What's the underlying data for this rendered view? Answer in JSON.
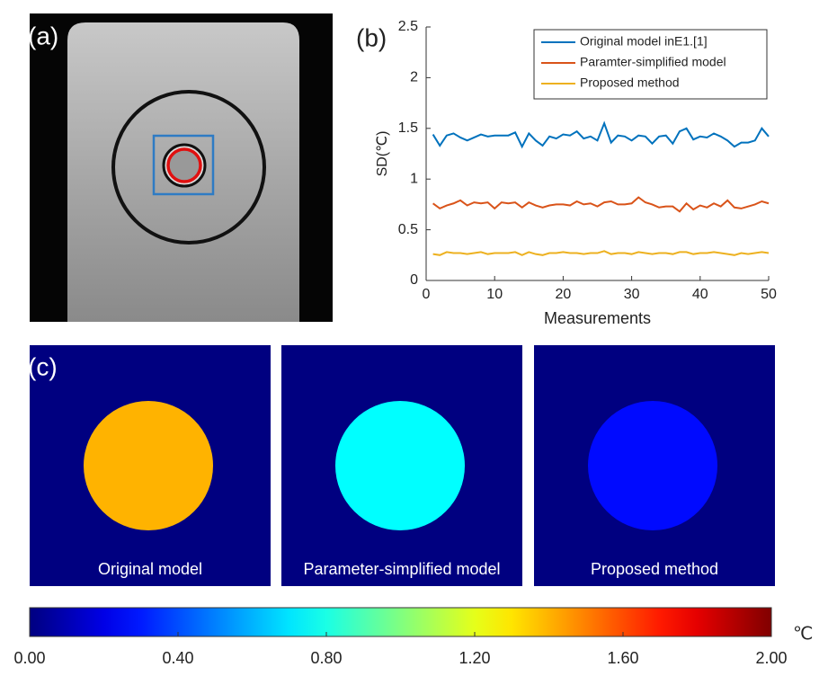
{
  "panel_labels": [
    "(a)",
    "(b)",
    "(c)"
  ],
  "chart_data": [
    {
      "type": "line",
      "xlabel": "Measurements",
      "ylabel": "SD(℃)",
      "x": [
        1,
        2,
        3,
        4,
        5,
        6,
        7,
        8,
        9,
        10,
        11,
        12,
        13,
        14,
        15,
        16,
        17,
        18,
        19,
        20,
        21,
        22,
        23,
        24,
        25,
        26,
        27,
        28,
        29,
        30,
        31,
        32,
        33,
        34,
        35,
        36,
        37,
        38,
        39,
        40,
        41,
        42,
        43,
        44,
        45,
        46,
        47,
        48,
        49,
        50
      ],
      "series": [
        {
          "name": "Original model inE1.[1]",
          "color": "#0072bd",
          "values": [
            1.44,
            1.33,
            1.43,
            1.45,
            1.41,
            1.38,
            1.41,
            1.44,
            1.42,
            1.43,
            1.43,
            1.43,
            1.46,
            1.32,
            1.45,
            1.38,
            1.33,
            1.42,
            1.4,
            1.44,
            1.43,
            1.47,
            1.4,
            1.42,
            1.38,
            1.55,
            1.36,
            1.43,
            1.42,
            1.38,
            1.43,
            1.42,
            1.35,
            1.42,
            1.43,
            1.35,
            1.47,
            1.5,
            1.39,
            1.42,
            1.41,
            1.45,
            1.42,
            1.38,
            1.32,
            1.36,
            1.36,
            1.38,
            1.5,
            1.42
          ]
        },
        {
          "name": "Paramter-simplified model",
          "color": "#d95319",
          "values": [
            0.76,
            0.71,
            0.74,
            0.76,
            0.79,
            0.74,
            0.77,
            0.76,
            0.77,
            0.71,
            0.77,
            0.76,
            0.77,
            0.72,
            0.77,
            0.74,
            0.72,
            0.74,
            0.75,
            0.75,
            0.74,
            0.78,
            0.75,
            0.76,
            0.73,
            0.77,
            0.78,
            0.75,
            0.75,
            0.76,
            0.82,
            0.77,
            0.75,
            0.72,
            0.73,
            0.73,
            0.68,
            0.76,
            0.7,
            0.74,
            0.72,
            0.76,
            0.73,
            0.79,
            0.72,
            0.71,
            0.73,
            0.75,
            0.78,
            0.76
          ]
        },
        {
          "name": "Proposed method",
          "color": "#edb120",
          "values": [
            0.26,
            0.25,
            0.28,
            0.27,
            0.27,
            0.26,
            0.27,
            0.28,
            0.26,
            0.27,
            0.27,
            0.27,
            0.28,
            0.25,
            0.28,
            0.26,
            0.25,
            0.27,
            0.27,
            0.28,
            0.27,
            0.27,
            0.26,
            0.27,
            0.27,
            0.29,
            0.26,
            0.27,
            0.27,
            0.26,
            0.28,
            0.27,
            0.26,
            0.27,
            0.27,
            0.26,
            0.28,
            0.28,
            0.26,
            0.27,
            0.27,
            0.28,
            0.27,
            0.26,
            0.25,
            0.27,
            0.26,
            0.27,
            0.28,
            0.27
          ]
        }
      ],
      "xlim": [
        0,
        50
      ],
      "xticks": [
        0,
        10,
        20,
        30,
        40,
        50
      ],
      "ylim": [
        0,
        2.5
      ],
      "yticks": [
        0,
        0.5,
        1,
        1.5,
        2,
        2.5
      ],
      "legend": "upper right",
      "grid": false
    },
    {
      "type": "heatmap",
      "colormap": "jet",
      "categories": [
        "Original model",
        "Parameter-simplified model",
        "Proposed method"
      ],
      "values": [
        1.4,
        0.75,
        0.27
      ]
    },
    {
      "type": "colorbar",
      "colormap": "jet",
      "unit": "℃",
      "xlim": [
        0,
        2
      ],
      "xticks": [
        {
          "value": 0,
          "label": "0.00"
        },
        {
          "value": 0.4,
          "label": "0.40"
        },
        {
          "value": 0.8,
          "label": "0.80"
        },
        {
          "value": 1.2,
          "label": "1.20"
        },
        {
          "value": 1.6,
          "label": "1.60"
        },
        {
          "value": 2,
          "label": "2.00"
        }
      ]
    }
  ]
}
